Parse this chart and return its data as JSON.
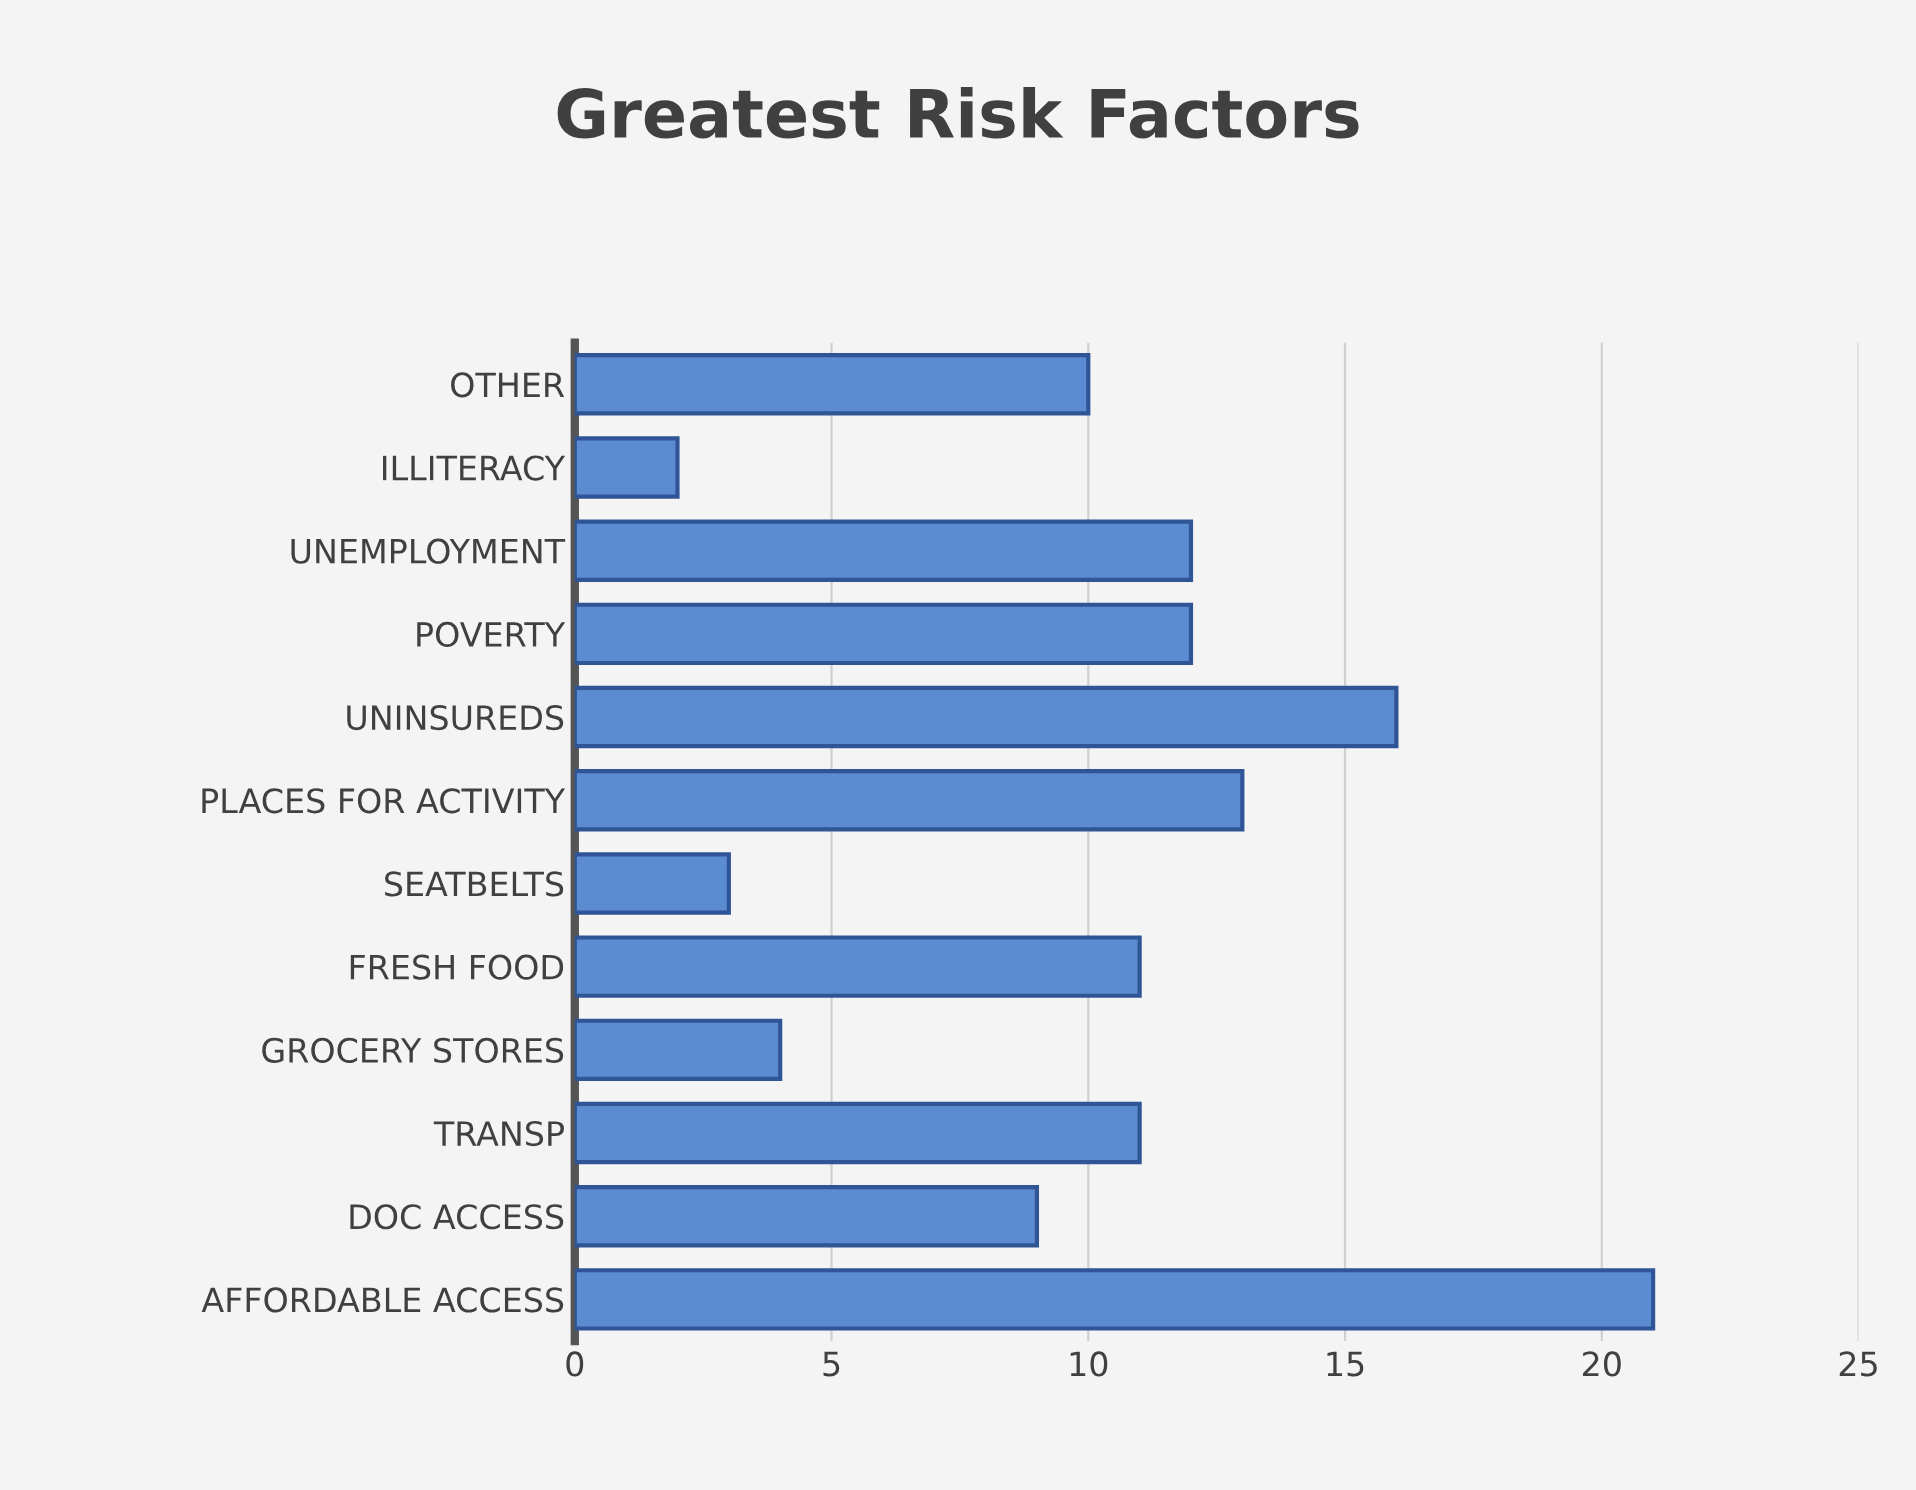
{
  "chart_data": {
    "type": "bar",
    "orientation": "horizontal",
    "title": "Greatest Risk Factors",
    "categories": [
      "OTHER",
      "ILLITERACY",
      "UNEMPLOYMENT",
      "POVERTY",
      "UNINSUREDS",
      "PLACES FOR ACTIVITY",
      "SEATBELTS",
      "FRESH FOOD",
      "GROCERY STORES",
      "TRANSP",
      "DOC ACCESS",
      "AFFORDABLE ACCESS"
    ],
    "values": [
      10,
      2,
      12,
      12,
      16,
      13,
      3,
      11,
      4,
      11,
      9,
      21
    ],
    "color": "#5b8bd0",
    "xlim": [
      0,
      25
    ],
    "xticks": [
      0,
      5,
      10,
      15,
      20,
      25
    ],
    "grid": "x"
  }
}
